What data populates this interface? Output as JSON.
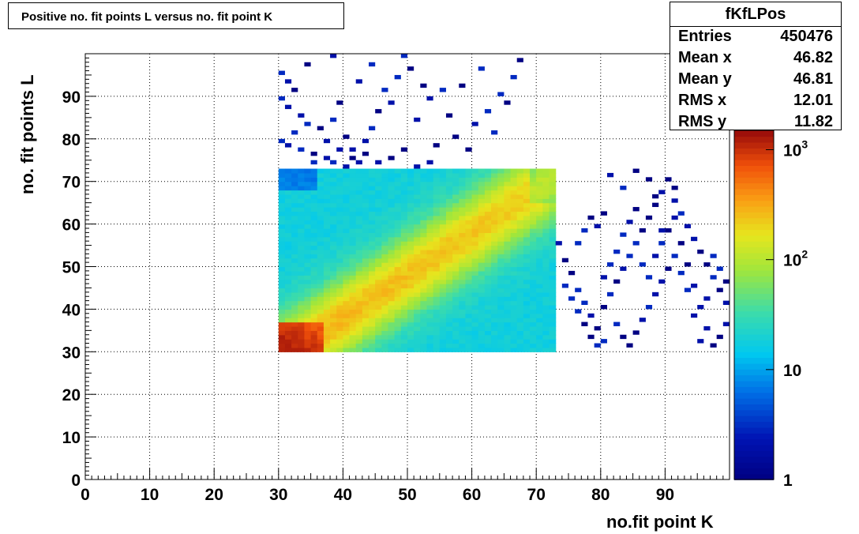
{
  "title": "Positive no. fit points L versus no. fit point K",
  "stats": {
    "name": "fKfLPos",
    "rows": [
      {
        "label": "Entries",
        "value": "450476"
      },
      {
        "label": "Mean x",
        "value": "46.82"
      },
      {
        "label": "Mean y",
        "value": "46.81"
      },
      {
        "label": "RMS x",
        "value": "12.01"
      },
      {
        "label": "RMS y",
        "value": "11.82"
      }
    ]
  },
  "chart_data": {
    "type": "heatmap",
    "title": "Positive no. fit points L versus no. fit point K",
    "xlabel": "no.fit point K",
    "ylabel": "no. fit points  L",
    "xlim": [
      0,
      100
    ],
    "ylim": [
      0,
      100
    ],
    "x_ticks": [
      "0",
      "10",
      "20",
      "30",
      "40",
      "50",
      "60",
      "70",
      "80",
      "90"
    ],
    "y_ticks": [
      "0",
      "10",
      "20",
      "30",
      "40",
      "50",
      "60",
      "70",
      "80",
      "90"
    ],
    "grid": true,
    "z_scale": "log",
    "z_range": [
      1,
      1500
    ],
    "z_ticks": [
      "1",
      "10",
      "10^2",
      "10^3"
    ],
    "dense_region": {
      "x": [
        30,
        73
      ],
      "y": [
        30,
        73
      ]
    },
    "ridge": {
      "x0": 33,
      "y0": 31,
      "x1": 66,
      "y1": 64
    },
    "hot_corner": {
      "x": [
        30,
        37
      ],
      "y": [
        30,
        37
      ]
    },
    "sparse_points": [
      [
        30,
        95
      ],
      [
        31,
        93
      ],
      [
        32,
        91
      ],
      [
        30,
        89
      ],
      [
        31,
        87
      ],
      [
        33,
        85
      ],
      [
        34,
        83
      ],
      [
        32,
        81
      ],
      [
        30,
        79
      ],
      [
        31,
        78
      ],
      [
        33,
        77
      ],
      [
        35,
        76
      ],
      [
        37,
        75
      ],
      [
        38,
        74
      ],
      [
        40,
        73
      ],
      [
        42,
        74
      ],
      [
        36,
        82
      ],
      [
        38,
        84
      ],
      [
        40,
        80
      ],
      [
        41,
        77
      ],
      [
        43,
        79
      ],
      [
        44,
        82
      ],
      [
        45,
        86
      ],
      [
        47,
        88
      ],
      [
        46,
        91
      ],
      [
        48,
        94
      ],
      [
        50,
        96
      ],
      [
        52,
        92
      ],
      [
        53,
        89
      ],
      [
        55,
        91
      ],
      [
        56,
        85
      ],
      [
        57,
        80
      ],
      [
        59,
        77
      ],
      [
        60,
        83
      ],
      [
        62,
        86
      ],
      [
        64,
        90
      ],
      [
        66,
        94
      ],
      [
        67,
        98
      ],
      [
        49,
        99
      ],
      [
        38,
        99
      ],
      [
        34,
        97
      ],
      [
        39,
        88
      ],
      [
        42,
        93
      ],
      [
        44,
        97
      ],
      [
        51,
        84
      ],
      [
        54,
        78
      ],
      [
        58,
        92
      ],
      [
        61,
        96
      ],
      [
        63,
        81
      ],
      [
        65,
        88
      ],
      [
        37,
        79
      ],
      [
        39,
        77
      ],
      [
        35,
        74
      ],
      [
        41,
        75
      ],
      [
        43,
        76
      ],
      [
        45,
        74
      ],
      [
        47,
        75
      ],
      [
        49,
        77
      ],
      [
        51,
        73
      ],
      [
        53,
        74
      ],
      [
        73,
        55
      ],
      [
        74,
        51
      ],
      [
        75,
        48
      ],
      [
        76,
        44
      ],
      [
        77,
        41
      ],
      [
        78,
        38
      ],
      [
        79,
        35
      ],
      [
        80,
        32
      ],
      [
        74,
        45
      ],
      [
        75,
        42
      ],
      [
        76,
        39
      ],
      [
        77,
        36
      ],
      [
        78,
        33
      ],
      [
        79,
        31
      ],
      [
        80,
        40
      ],
      [
        81,
        43
      ],
      [
        82,
        46
      ],
      [
        83,
        49
      ],
      [
        84,
        52
      ],
      [
        85,
        55
      ],
      [
        86,
        58
      ],
      [
        87,
        61
      ],
      [
        88,
        64
      ],
      [
        89,
        67
      ],
      [
        90,
        70
      ],
      [
        91,
        65
      ],
      [
        92,
        62
      ],
      [
        93,
        59
      ],
      [
        94,
        56
      ],
      [
        95,
        53
      ],
      [
        96,
        50
      ],
      [
        97,
        47
      ],
      [
        98,
        44
      ],
      [
        99,
        41
      ],
      [
        82,
        36
      ],
      [
        83,
        33
      ],
      [
        84,
        31
      ],
      [
        85,
        34
      ],
      [
        86,
        37
      ],
      [
        87,
        40
      ],
      [
        88,
        43
      ],
      [
        89,
        46
      ],
      [
        90,
        49
      ],
      [
        91,
        52
      ],
      [
        92,
        55
      ],
      [
        93,
        50
      ],
      [
        94,
        45
      ],
      [
        95,
        40
      ],
      [
        96,
        35
      ],
      [
        97,
        31
      ],
      [
        98,
        33
      ],
      [
        99,
        36
      ],
      [
        80,
        47
      ],
      [
        81,
        50
      ],
      [
        82,
        53
      ],
      [
        83,
        57
      ],
      [
        84,
        60
      ],
      [
        85,
        63
      ],
      [
        86,
        50
      ],
      [
        87,
        47
      ],
      [
        88,
        52
      ],
      [
        89,
        55
      ],
      [
        90,
        58
      ],
      [
        91,
        61
      ],
      [
        92,
        48
      ],
      [
        93,
        44
      ],
      [
        94,
        38
      ],
      [
        95,
        32
      ],
      [
        96,
        42
      ],
      [
        97,
        52
      ],
      [
        98,
        49
      ],
      [
        99,
        46
      ],
      [
        76,
        55
      ],
      [
        77,
        58
      ],
      [
        78,
        61
      ],
      [
        79,
        59
      ],
      [
        80,
        62
      ],
      [
        81,
        71
      ],
      [
        83,
        68
      ],
      [
        85,
        72
      ],
      [
        87,
        70
      ],
      [
        88,
        66
      ],
      [
        89,
        58
      ],
      [
        91,
        68
      ]
    ]
  }
}
